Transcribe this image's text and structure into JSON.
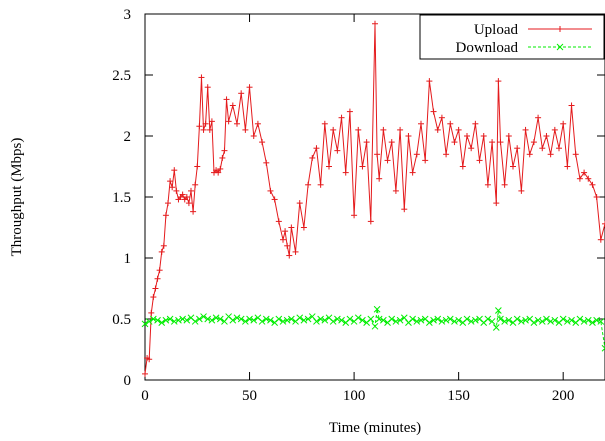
{
  "chart_data": {
    "type": "line",
    "title": "",
    "xlabel": "Time (minutes)",
    "ylabel": "Throughput (Mbps)",
    "xlim": [
      0,
      220
    ],
    "ylim": [
      0,
      3
    ],
    "xticks": [
      0,
      50,
      100,
      150,
      200
    ],
    "yticks": [
      0,
      0.5,
      1,
      1.5,
      2,
      2.5,
      3
    ],
    "xtick_labels": [
      "0",
      "50",
      "100",
      "150",
      "200"
    ],
    "ytick_labels": [
      "0",
      "0.5",
      "1",
      "1.5",
      "2",
      "2.5",
      "3"
    ],
    "grid": false,
    "legend": "top-right",
    "series": [
      {
        "name": "Upload",
        "color": "#e41a1c",
        "marker": "plus",
        "dash": "solid",
        "x": [
          0,
          1,
          2,
          3,
          4,
          5,
          6,
          7,
          8,
          9,
          10,
          11,
          12,
          13,
          14,
          15,
          16,
          17,
          18,
          19,
          20,
          21,
          22,
          23,
          24,
          25,
          26,
          27,
          28,
          29,
          30,
          31,
          32,
          33,
          34,
          35,
          36,
          37,
          38,
          39,
          40,
          42,
          44,
          46,
          48,
          50,
          52,
          54,
          56,
          58,
          60,
          62,
          64,
          66,
          67,
          68,
          69,
          70,
          72,
          74,
          76,
          78,
          80,
          82,
          84,
          86,
          88,
          90,
          92,
          94,
          96,
          98,
          100,
          102,
          104,
          106,
          108,
          110,
          111,
          112,
          114,
          116,
          118,
          120,
          122,
          124,
          126,
          128,
          130,
          132,
          134,
          136,
          138,
          140,
          142,
          144,
          146,
          148,
          150,
          152,
          154,
          156,
          158,
          160,
          162,
          164,
          166,
          168,
          169,
          170,
          172,
          174,
          176,
          178,
          180,
          182,
          184,
          186,
          188,
          190,
          192,
          194,
          196,
          198,
          200,
          202,
          204,
          206,
          208,
          210,
          212,
          214,
          216,
          218,
          220
        ],
        "y": [
          0.05,
          0.18,
          0.17,
          0.55,
          0.68,
          0.75,
          0.83,
          0.9,
          1.05,
          1.1,
          1.35,
          1.45,
          1.63,
          1.58,
          1.72,
          1.55,
          1.48,
          1.5,
          1.52,
          1.48,
          1.5,
          1.45,
          1.55,
          1.38,
          1.6,
          1.75,
          2.08,
          2.48,
          2.05,
          2.1,
          2.4,
          2.05,
          2.12,
          1.7,
          1.72,
          1.7,
          1.73,
          1.82,
          1.88,
          2.3,
          2.12,
          2.25,
          2.1,
          2.35,
          2.05,
          2.4,
          2.0,
          2.1,
          1.95,
          1.78,
          1.55,
          1.48,
          1.3,
          1.15,
          1.22,
          1.1,
          1.02,
          1.25,
          1.05,
          1.45,
          1.25,
          1.6,
          1.82,
          1.9,
          1.6,
          2.1,
          1.75,
          2.05,
          1.88,
          2.15,
          1.7,
          2.2,
          1.35,
          2.05,
          1.75,
          1.95,
          1.3,
          2.92,
          1.85,
          1.65,
          2.05,
          1.8,
          1.95,
          1.55,
          2.05,
          1.4,
          2.0,
          1.7,
          1.85,
          2.1,
          1.8,
          2.45,
          2.2,
          2.05,
          2.15,
          1.85,
          2.1,
          1.95,
          2.05,
          1.75,
          2.0,
          1.9,
          2.1,
          1.8,
          2.0,
          1.6,
          1.95,
          1.45,
          2.45,
          1.95,
          1.6,
          2.0,
          1.75,
          1.9,
          1.55,
          2.05,
          1.85,
          1.95,
          2.15,
          1.9,
          2.0,
          1.85,
          2.05,
          1.9,
          2.1,
          1.75,
          2.25,
          1.85,
          1.65,
          1.7,
          1.65,
          1.6,
          1.5,
          1.15,
          1.28
        ]
      },
      {
        "name": "Download",
        "color": "#00ee00",
        "marker": "cross",
        "dash": "dashed",
        "x": [
          0,
          2,
          4,
          6,
          8,
          10,
          12,
          14,
          16,
          18,
          20,
          22,
          24,
          26,
          28,
          30,
          32,
          34,
          36,
          38,
          40,
          42,
          44,
          46,
          48,
          50,
          52,
          54,
          56,
          58,
          60,
          62,
          64,
          66,
          68,
          70,
          72,
          74,
          76,
          78,
          80,
          82,
          84,
          86,
          88,
          90,
          92,
          94,
          96,
          98,
          100,
          102,
          104,
          106,
          108,
          110,
          111,
          112,
          114,
          116,
          118,
          120,
          122,
          124,
          126,
          128,
          130,
          132,
          134,
          136,
          138,
          140,
          142,
          144,
          146,
          148,
          150,
          152,
          154,
          156,
          158,
          160,
          162,
          164,
          166,
          168,
          169,
          170,
          172,
          174,
          176,
          178,
          180,
          182,
          184,
          186,
          188,
          190,
          192,
          194,
          196,
          198,
          200,
          202,
          204,
          206,
          208,
          210,
          212,
          214,
          216,
          218,
          220
        ],
        "y": [
          0.46,
          0.48,
          0.5,
          0.49,
          0.47,
          0.49,
          0.5,
          0.48,
          0.49,
          0.5,
          0.49,
          0.51,
          0.48,
          0.5,
          0.52,
          0.5,
          0.49,
          0.51,
          0.5,
          0.48,
          0.52,
          0.49,
          0.51,
          0.5,
          0.48,
          0.5,
          0.49,
          0.51,
          0.48,
          0.5,
          0.49,
          0.47,
          0.5,
          0.48,
          0.49,
          0.5,
          0.48,
          0.51,
          0.49,
          0.5,
          0.52,
          0.48,
          0.5,
          0.49,
          0.51,
          0.48,
          0.5,
          0.49,
          0.47,
          0.5,
          0.48,
          0.51,
          0.49,
          0.47,
          0.5,
          0.44,
          0.58,
          0.5,
          0.49,
          0.47,
          0.5,
          0.48,
          0.49,
          0.51,
          0.47,
          0.5,
          0.48,
          0.49,
          0.5,
          0.47,
          0.49,
          0.5,
          0.48,
          0.49,
          0.5,
          0.48,
          0.49,
          0.47,
          0.5,
          0.48,
          0.49,
          0.5,
          0.47,
          0.5,
          0.48,
          0.43,
          0.57,
          0.5,
          0.48,
          0.49,
          0.47,
          0.5,
          0.48,
          0.49,
          0.5,
          0.47,
          0.49,
          0.48,
          0.5,
          0.48,
          0.49,
          0.47,
          0.5,
          0.48,
          0.49,
          0.47,
          0.5,
          0.48,
          0.49,
          0.47,
          0.49,
          0.48,
          0.26
        ]
      }
    ]
  }
}
